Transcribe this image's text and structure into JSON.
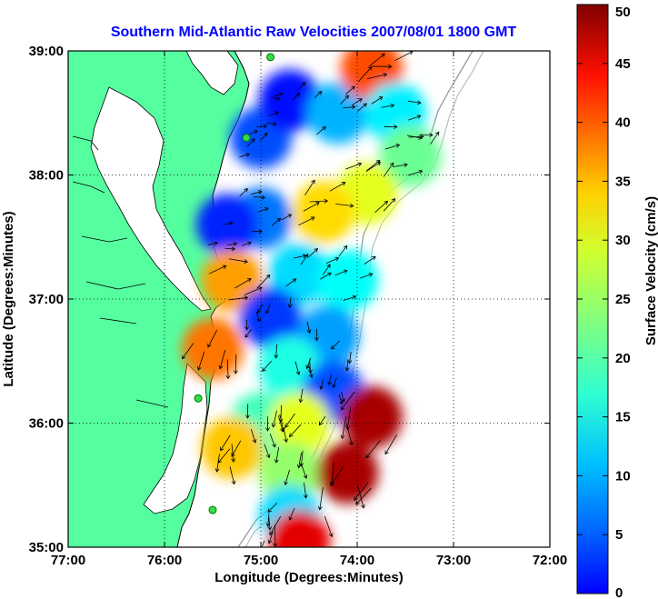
{
  "chart_data": {
    "type": "heatmap",
    "title": "Southern Mid-Atlantic Raw Velocities 2007/08/01 1800 GMT",
    "xlabel": "Longitude (Degrees:Minutes)",
    "ylabel": "Latitude (Degrees:Minutes)",
    "xlim": [
      -77,
      -72
    ],
    "ylim": [
      35,
      39
    ],
    "x_ticks": [
      {
        "value": -77,
        "label": "77:00"
      },
      {
        "value": -76,
        "label": "76:00"
      },
      {
        "value": -75,
        "label": "75:00"
      },
      {
        "value": -74,
        "label": "74:00"
      },
      {
        "value": -73,
        "label": "73:00"
      },
      {
        "value": -72,
        "label": "72:00"
      }
    ],
    "y_ticks": [
      {
        "value": 39,
        "label": "39:00"
      },
      {
        "value": 38,
        "label": "38:00"
      },
      {
        "value": 37,
        "label": "37:00"
      },
      {
        "value": 36,
        "label": "36:00"
      },
      {
        "value": 35,
        "label": "35:00"
      }
    ],
    "grid": true,
    "colorbar": {
      "label": "Surface Velocity (cm/s)",
      "range": [
        0,
        50
      ],
      "ticks": [
        {
          "value": 0,
          "label": "0"
        },
        {
          "value": 5,
          "label": "5"
        },
        {
          "value": 10,
          "label": "10"
        },
        {
          "value": 15,
          "label": "15"
        },
        {
          "value": 20,
          "label": "20"
        },
        {
          "value": 25,
          "label": "25"
        },
        {
          "value": 30,
          "label": "30"
        },
        {
          "value": 35,
          "label": "35"
        },
        {
          "value": 40,
          "label": "40"
        },
        {
          "value": 45,
          "label": "45"
        },
        {
          "value": 50,
          "label": "50"
        }
      ]
    },
    "velocity_regions": [
      {
        "lon": -75.0,
        "lat": 38.3,
        "speed": 10
      },
      {
        "lon": -74.7,
        "lat": 38.6,
        "speed": 7
      },
      {
        "lon": -74.2,
        "lat": 38.5,
        "speed": 15
      },
      {
        "lon": -73.85,
        "lat": 38.85,
        "speed": 40
      },
      {
        "lon": -73.6,
        "lat": 38.5,
        "speed": 18
      },
      {
        "lon": -73.45,
        "lat": 38.15,
        "speed": 24
      },
      {
        "lon": -73.9,
        "lat": 37.85,
        "speed": 30
      },
      {
        "lon": -74.35,
        "lat": 37.7,
        "speed": 33
      },
      {
        "lon": -75.0,
        "lat": 37.65,
        "speed": 12
      },
      {
        "lon": -75.35,
        "lat": 37.6,
        "speed": 8
      },
      {
        "lon": -75.3,
        "lat": 37.15,
        "speed": 36
      },
      {
        "lon": -74.6,
        "lat": 37.2,
        "speed": 17
      },
      {
        "lon": -74.1,
        "lat": 37.15,
        "speed": 19
      },
      {
        "lon": -74.9,
        "lat": 36.85,
        "speed": 9
      },
      {
        "lon": -74.3,
        "lat": 36.7,
        "speed": 14
      },
      {
        "lon": -75.5,
        "lat": 36.6,
        "speed": 38
      },
      {
        "lon": -74.7,
        "lat": 36.45,
        "speed": 20
      },
      {
        "lon": -74.25,
        "lat": 36.25,
        "speed": 10
      },
      {
        "lon": -73.85,
        "lat": 36.05,
        "speed": 48
      },
      {
        "lon": -75.0,
        "lat": 36.0,
        "speed": 22
      },
      {
        "lon": -74.6,
        "lat": 36.0,
        "speed": 30
      },
      {
        "lon": -75.3,
        "lat": 35.8,
        "speed": 34
      },
      {
        "lon": -74.7,
        "lat": 35.6,
        "speed": 26
      },
      {
        "lon": -74.1,
        "lat": 35.6,
        "speed": 48
      },
      {
        "lon": -74.7,
        "lat": 35.25,
        "speed": 17
      },
      {
        "lon": -74.6,
        "lat": 35.05,
        "speed": 45
      }
    ],
    "stations": [
      {
        "lon": -74.9,
        "lat": 38.95
      },
      {
        "lon": -75.15,
        "lat": 38.3
      },
      {
        "lon": -75.65,
        "lat": 36.2
      },
      {
        "lon": -75.5,
        "lat": 35.3
      }
    ]
  }
}
